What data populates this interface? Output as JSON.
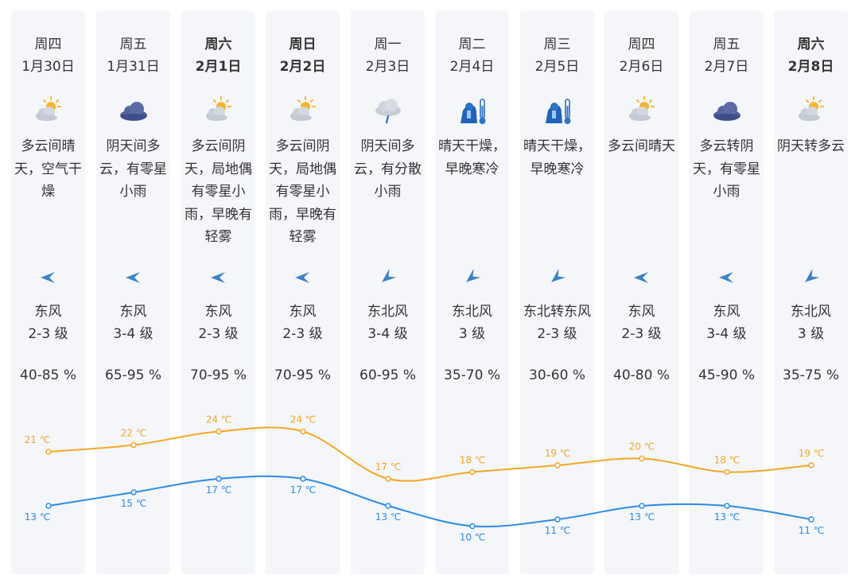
{
  "days": [
    {
      "name": "周四",
      "date": "1月30日",
      "weather": "多云间晴天，空气干燥",
      "icon": "partly-cloudy-icon",
      "wind_direction": "东风",
      "wind_level": "2-3 级",
      "wind_arrow": "east-wind-arrow-icon",
      "humidity": "40-85 %",
      "high": "21 ℃",
      "low": "13 ℃",
      "bold": false
    },
    {
      "name": "周五",
      "date": "1月31日",
      "weather": "阴天间多云，有零星小雨",
      "icon": "overcast-icon",
      "wind_direction": "东风",
      "wind_level": "3-4 级",
      "wind_arrow": "east-wind-arrow-icon",
      "humidity": "65-95 %",
      "high": "22 ℃",
      "low": "15 ℃",
      "bold": false
    },
    {
      "name": "周六",
      "date": "2月1日",
      "weather": "多云间阴天，局地偶有零星小雨，早晚有轻雾",
      "icon": "partly-cloudy-icon",
      "wind_direction": "东风",
      "wind_level": "2-3 级",
      "wind_arrow": "east-wind-arrow-icon",
      "humidity": "70-95 %",
      "high": "24 ℃",
      "low": "17 ℃",
      "bold": true
    },
    {
      "name": "周日",
      "date": "2月2日",
      "weather": "多云间阴天，局地偶有零星小雨，早晚有轻雾",
      "icon": "partly-cloudy-icon",
      "wind_direction": "东风",
      "wind_level": "2-3 级",
      "wind_arrow": "east-wind-arrow-icon",
      "humidity": "70-95 %",
      "high": "24 ℃",
      "low": "17 ℃",
      "bold": true
    },
    {
      "name": "周一",
      "date": "2月3日",
      "weather": "阴天间多云，有分散小雨",
      "icon": "light-rain-icon",
      "wind_direction": "东北风",
      "wind_level": "3-4 级",
      "wind_arrow": "northeast-wind-arrow-icon",
      "humidity": "60-95 %",
      "high": "17 ℃",
      "low": "13 ℃",
      "bold": false
    },
    {
      "name": "周二",
      "date": "2月4日",
      "weather": "晴天干燥，早晚寒冷",
      "icon": "cold-thermometer-icon",
      "wind_direction": "东北风",
      "wind_level": "3 级",
      "wind_arrow": "northeast-wind-arrow-icon",
      "humidity": "35-70 %",
      "high": "18 ℃",
      "low": "10 ℃",
      "bold": false
    },
    {
      "name": "周三",
      "date": "2月5日",
      "weather": "晴天干燥，早晚寒冷",
      "icon": "cold-thermometer-icon",
      "wind_direction": "东北转东风",
      "wind_level": "2-3 级",
      "wind_arrow": "northeast-wind-arrow-icon",
      "humidity": "30-60 %",
      "high": "19 ℃",
      "low": "11 ℃",
      "bold": false
    },
    {
      "name": "周四",
      "date": "2月6日",
      "weather": "多云间晴天",
      "icon": "partly-cloudy-icon",
      "wind_direction": "东风",
      "wind_level": "2-3 级",
      "wind_arrow": "east-wind-arrow-icon",
      "humidity": "40-80 %",
      "high": "20 ℃",
      "low": "13 ℃",
      "bold": false
    },
    {
      "name": "周五",
      "date": "2月7日",
      "weather": "多云转阴天，有零星小雨",
      "icon": "overcast-icon",
      "wind_direction": "东风",
      "wind_level": "3-4 级",
      "wind_arrow": "east-wind-arrow-icon",
      "humidity": "45-90 %",
      "high": "18 ℃",
      "low": "13 ℃",
      "bold": false
    },
    {
      "name": "周六",
      "date": "2月8日",
      "weather": "阴天转多云",
      "icon": "partly-cloudy-icon",
      "wind_direction": "东北风",
      "wind_level": "3 级",
      "wind_arrow": "northeast-wind-arrow-icon",
      "humidity": "35-75 %",
      "high": "19 ℃",
      "low": "11 ℃",
      "bold": true
    }
  ],
  "colors": {
    "high_line": "#f5a623",
    "low_line": "#2b8be6",
    "column_bg": "#f4f6fa",
    "text": "#333333",
    "arrow": "#3c82c8"
  },
  "chart_data": {
    "type": "line",
    "x": [
      "1月30日",
      "1月31日",
      "2月1日",
      "2月2日",
      "2月3日",
      "2月4日",
      "2月5日",
      "2月6日",
      "2月7日",
      "2月8日"
    ],
    "series": [
      {
        "values": [
          21,
          22,
          24,
          24,
          17,
          18,
          19,
          20,
          18,
          19
        ],
        "color": "#f5a623"
      },
      {
        "values": [
          13,
          15,
          17,
          17,
          13,
          10,
          11,
          13,
          13,
          11
        ],
        "color": "#2b8be6"
      }
    ],
    "unit": "℃",
    "ylim": [
      10,
      24
    ],
    "grid": false
  }
}
